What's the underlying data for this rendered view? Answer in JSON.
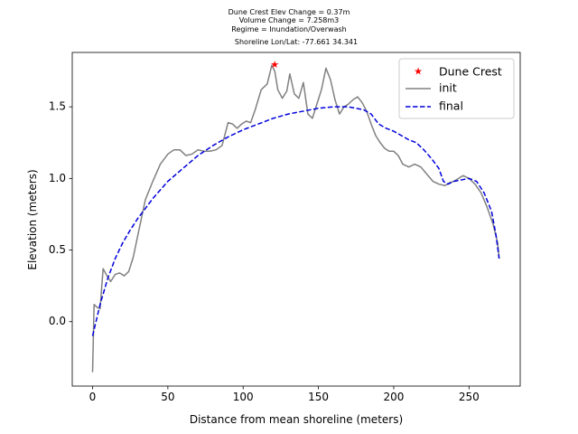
{
  "chart_data": {
    "type": "line",
    "title_lines": [
      "Dune Crest Elev Change = 0.37m",
      "Volume Change = 7.258m3",
      "Regime = Inundation/Overwash",
      "Shoreline Lon/Lat: -77.661 34.341"
    ],
    "xlabel": "Distance from mean shoreline (meters)",
    "ylabel": "Elevation (meters)",
    "xlim": [
      -13.5,
      284
    ],
    "ylim": [
      -0.45,
      1.88
    ],
    "xticks": [
      0,
      50,
      100,
      150,
      200,
      250
    ],
    "yticks": [
      0.0,
      0.5,
      1.0,
      1.5
    ],
    "xtick_labels": [
      "0",
      "50",
      "100",
      "150",
      "200",
      "250"
    ],
    "ytick_labels": [
      "0.0",
      "0.5",
      "1.0",
      "1.5"
    ],
    "legend_position": "top-right",
    "legend": [
      "Dune Crest",
      "init",
      "final"
    ],
    "series": [
      {
        "name": "init",
        "color": "#808080",
        "style": "solid",
        "x": [
          0,
          1,
          3,
          5,
          7,
          9,
          12,
          15,
          18,
          21,
          24,
          27,
          30,
          35,
          40,
          45,
          50,
          54,
          58,
          62,
          66,
          70,
          74,
          78,
          82,
          86,
          90,
          93,
          96,
          99,
          102,
          105,
          108,
          112,
          116,
          119,
          121,
          123,
          126,
          129,
          131,
          134,
          137,
          140,
          143,
          146,
          149,
          152,
          155,
          158,
          161,
          164,
          167,
          170,
          173,
          176,
          179,
          182,
          185,
          188,
          191,
          194,
          197,
          200,
          203,
          206,
          210,
          214,
          218,
          222,
          226,
          230,
          234,
          237,
          240,
          243,
          246,
          250,
          254,
          258,
          262,
          266,
          269,
          270
        ],
        "y": [
          -0.35,
          0.12,
          0.1,
          0.09,
          0.37,
          0.33,
          0.28,
          0.33,
          0.34,
          0.32,
          0.35,
          0.45,
          0.6,
          0.85,
          0.98,
          1.1,
          1.17,
          1.2,
          1.2,
          1.16,
          1.17,
          1.2,
          1.19,
          1.19,
          1.2,
          1.23,
          1.39,
          1.38,
          1.35,
          1.38,
          1.4,
          1.39,
          1.48,
          1.62,
          1.66,
          1.79,
          1.75,
          1.62,
          1.56,
          1.61,
          1.73,
          1.59,
          1.56,
          1.67,
          1.45,
          1.42,
          1.52,
          1.62,
          1.77,
          1.69,
          1.55,
          1.45,
          1.5,
          1.52,
          1.55,
          1.57,
          1.53,
          1.47,
          1.38,
          1.3,
          1.25,
          1.21,
          1.19,
          1.19,
          1.16,
          1.1,
          1.08,
          1.1,
          1.08,
          1.03,
          0.98,
          0.96,
          0.95,
          0.97,
          0.98,
          1.0,
          1.02,
          1.0,
          0.96,
          0.9,
          0.8,
          0.68,
          0.55,
          0.45
        ]
      },
      {
        "name": "final",
        "color": "#0000dd",
        "style": "dashed",
        "x": [
          0,
          5,
          10,
          15,
          20,
          25,
          30,
          40,
          50,
          60,
          70,
          80,
          90,
          100,
          110,
          120,
          130,
          140,
          150,
          160,
          165,
          170,
          175,
          180,
          185,
          190,
          195,
          200,
          205,
          210,
          215,
          220,
          225,
          230,
          233,
          236,
          240,
          245,
          250,
          255,
          260,
          265,
          268,
          270
        ],
        "y": [
          -0.1,
          0.12,
          0.3,
          0.44,
          0.55,
          0.64,
          0.72,
          0.86,
          0.98,
          1.07,
          1.16,
          1.23,
          1.29,
          1.34,
          1.38,
          1.42,
          1.45,
          1.47,
          1.49,
          1.5,
          1.5,
          1.5,
          1.49,
          1.48,
          1.45,
          1.38,
          1.35,
          1.33,
          1.3,
          1.27,
          1.25,
          1.2,
          1.14,
          1.07,
          0.98,
          0.96,
          0.98,
          0.99,
          1.0,
          0.98,
          0.9,
          0.77,
          0.6,
          0.44
        ]
      }
    ],
    "markers": [
      {
        "name": "Dune Crest",
        "color": "#ff0000",
        "shape": "star",
        "x": 121,
        "y": 1.79
      }
    ]
  }
}
